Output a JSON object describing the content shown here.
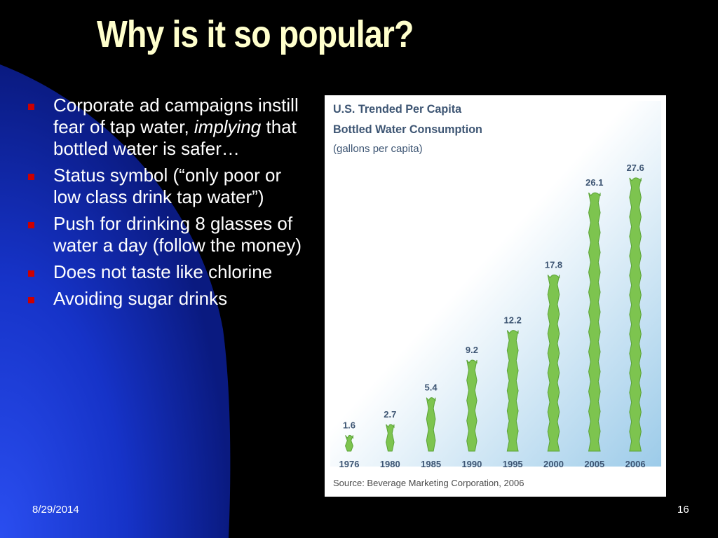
{
  "slide": {
    "title": "Why is it so popular?",
    "date": "8/29/2014",
    "page_number": "16"
  },
  "bullets": [
    {
      "before": "Corporate ad campaigns instill fear of tap water, ",
      "italic": "implying",
      "after": " that bottled water is safer…"
    },
    {
      "before": "Status symbol (“only poor or low class drink tap water”)",
      "italic": "",
      "after": ""
    },
    {
      "before": "Push for drinking 8 glasses of water a day (follow the money)",
      "italic": "",
      "after": ""
    },
    {
      "before": "Does not taste like chlorine",
      "italic": "",
      "after": ""
    },
    {
      "before": "Avoiding sugar drinks",
      "italic": "",
      "after": ""
    }
  ],
  "colors": {
    "title": "#ffffcc",
    "bullet_marker": "#cc0000",
    "background_glow": "#1f3fdc",
    "bar": "#7dc44f",
    "bar_edge": "#5aa336",
    "chart_label": "#3d5573",
    "plot_gradient_top": "#ffffff",
    "plot_gradient_bottom": "#9ccbe9"
  },
  "chart_data": {
    "type": "bar",
    "title_lines": [
      "U.S. Trended Per Capita",
      "Bottled Water Consumption"
    ],
    "subtitle": "(gallons per capita)",
    "categories": [
      "1976",
      "1980",
      "1985",
      "1990",
      "1995",
      "2000",
      "2005",
      "2006"
    ],
    "values": [
      1.6,
      2.7,
      5.4,
      9.2,
      12.2,
      17.8,
      26.1,
      27.6
    ],
    "value_labels": [
      "1.6",
      "2.7",
      "5.4",
      "9.2",
      "12.2",
      "17.8",
      "26.1",
      "27.6"
    ],
    "ylim": [
      0,
      30
    ],
    "grid": false,
    "legend": "none",
    "source": "Source: Beverage Marketing Corporation, 2006"
  }
}
